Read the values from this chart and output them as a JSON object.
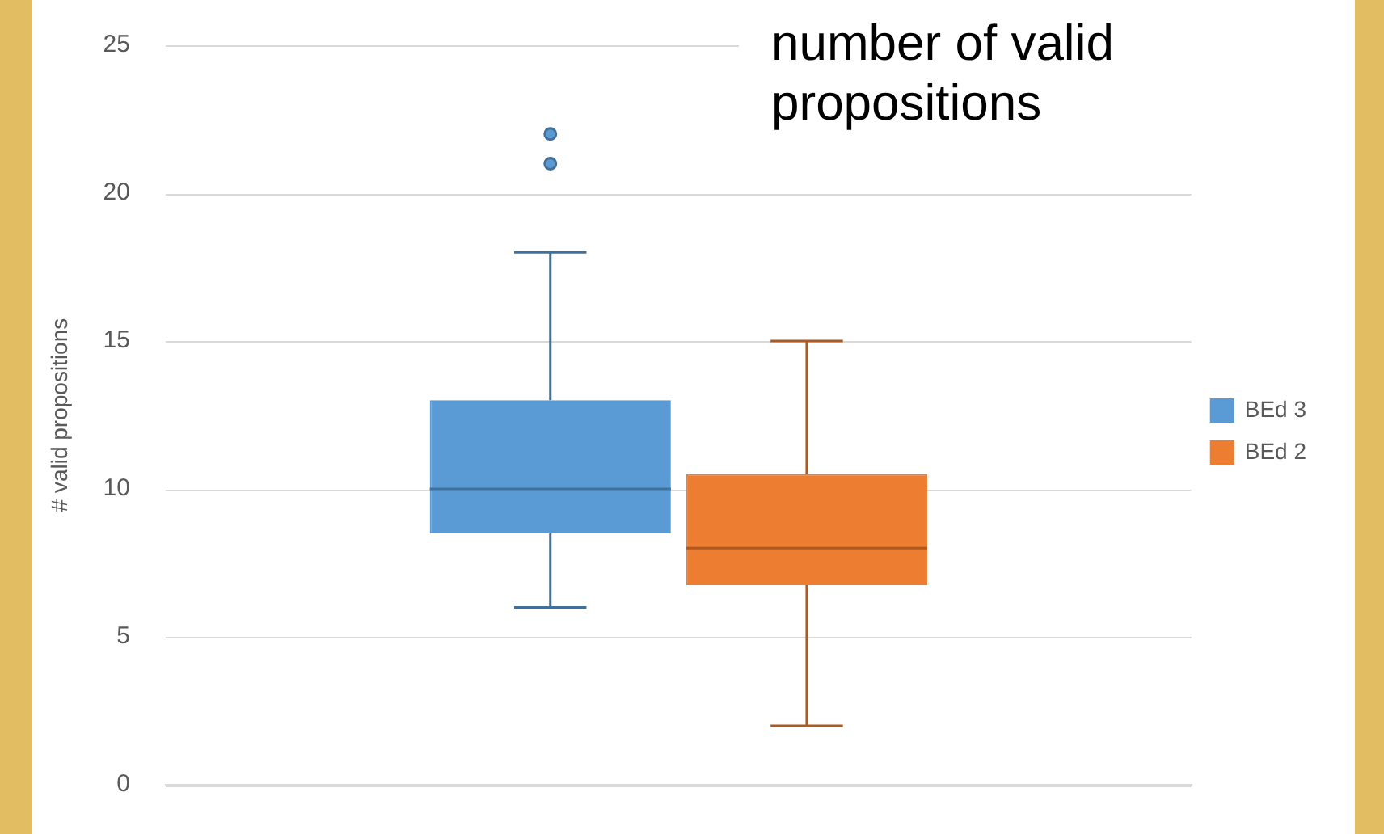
{
  "chart_data": {
    "type": "box",
    "title": "number of valid propositions",
    "ylabel": "# valid propositions",
    "categories": [
      null
    ],
    "series": [
      {
        "name": "BEd 3",
        "color": "#5b9bd5",
        "boxes": [
          {
            "low": 6,
            "q1": 8.5,
            "median": 10,
            "q3": 13,
            "high": 18,
            "outliers": [
              21,
              22
            ]
          }
        ]
      },
      {
        "name": "BEd 2",
        "color": "#ed7d31",
        "boxes": [
          {
            "low": 2,
            "q1": 6.75,
            "median": 8,
            "q3": 10.5,
            "high": 15
          }
        ]
      }
    ],
    "ylim": [
      0,
      25
    ],
    "yticks": [
      0,
      5,
      10,
      15,
      20,
      25
    ],
    "grid": "y",
    "legend": "right"
  }
}
